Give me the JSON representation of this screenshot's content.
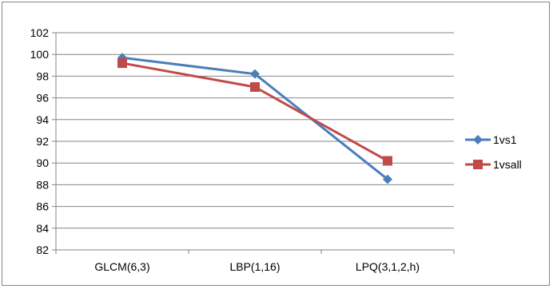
{
  "chart_data": {
    "type": "line",
    "title": "",
    "xlabel": "",
    "ylabel": "",
    "categories": [
      "GLCM(6,3)",
      "LBP(1,16)",
      "LPQ(3,1,2,h)"
    ],
    "ylim": [
      82,
      102
    ],
    "yticks": [
      82,
      84,
      86,
      88,
      90,
      92,
      94,
      96,
      98,
      100,
      102
    ],
    "grid": true,
    "legend_position": "right",
    "series": [
      {
        "name": "1vs1",
        "values": [
          99.7,
          98.2,
          88.5
        ],
        "color": "#4a7ebb",
        "marker": "diamond"
      },
      {
        "name": "1vsall",
        "values": [
          99.2,
          97.0,
          90.2
        ],
        "color": "#be4b48",
        "marker": "square"
      }
    ]
  }
}
